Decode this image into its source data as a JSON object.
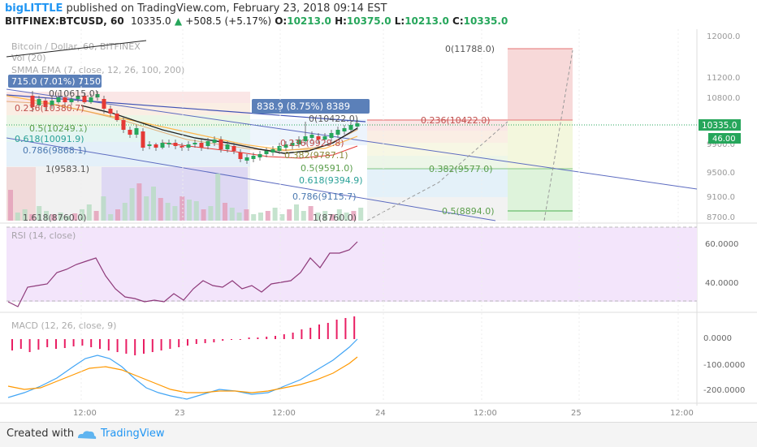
{
  "header": {
    "author": "bigLITTLE",
    "published": "published on TradingView.com, February 23, 2018 09:14 EST",
    "symbol": "BITFINEX:BTCUSD, 60",
    "last": "10335.0",
    "change": "+508.5 (+5.17%)",
    "open_label": "O:",
    "open": "10213.0",
    "high_label": "H:",
    "high": "10375.0",
    "low_label": "L:",
    "low": "10213.0",
    "close_label": "C:",
    "close": "10335.0"
  },
  "legend": {
    "series": "Bitcoin / Dollar, 60, BITFINEX",
    "vol": "Vol (20)",
    "smma": "SMMA EMA (7, close, 12, 26, 100, 200)",
    "rsi": "RSI (14, close)",
    "macd": "MACD (12, 26, close, 9)"
  },
  "price_axis": {
    "ticks": [
      "12000.0",
      "11200.0",
      "10800.0",
      "9900.0",
      "9500.0",
      "9100.0",
      "8700.0"
    ],
    "last_badge": "10335.0",
    "vol_badge": "46.00"
  },
  "rsi_axis": {
    "ticks": [
      "60.0000",
      "40.0000"
    ]
  },
  "macd_axis": {
    "ticks": [
      "0.0000",
      "-100.0000",
      "-200.0000"
    ]
  },
  "time_axis": {
    "ticks": [
      "12:00",
      "23",
      "12:00",
      "24",
      "12:00",
      "25",
      "12:00"
    ]
  },
  "measure_boxes": {
    "left": "715.0 (7.01%) 7150",
    "right": "838.9 (8.75%) 8389"
  },
  "fib_left": {
    "levels": [
      "0(10615.0)",
      "0.236(10380.7)",
      "0.5(10249.1)",
      "0.618(10091.9)",
      "0.786(9868.1)",
      "1(9583.1)",
      "1.618(8760.0)"
    ]
  },
  "fib_mid": {
    "levels": [
      "0(10422.0)",
      "0.236(9929.8)",
      "0.382(9787.1)",
      "0.5(9591.0)",
      "0.618(9394.9)",
      "0.786(9115.7)",
      "1(8760.0)"
    ]
  },
  "fib_right": {
    "levels": [
      "0(11788.0)",
      "0.236(10422.0)",
      "0.382(9577.0)",
      "0.5(8894.0)"
    ]
  },
  "footer": {
    "created_with": "Created with",
    "brand": "TradingView"
  },
  "colors": {
    "up": "#26a65b",
    "down": "#e53935",
    "accent": "#2196f3",
    "rsi_line": "#8e3a7a",
    "macd_line": "#42a5f5",
    "signal_line": "#ff9800",
    "hist": "#e91e63"
  },
  "icons": {
    "tv_logo": "cloud-icon"
  }
}
